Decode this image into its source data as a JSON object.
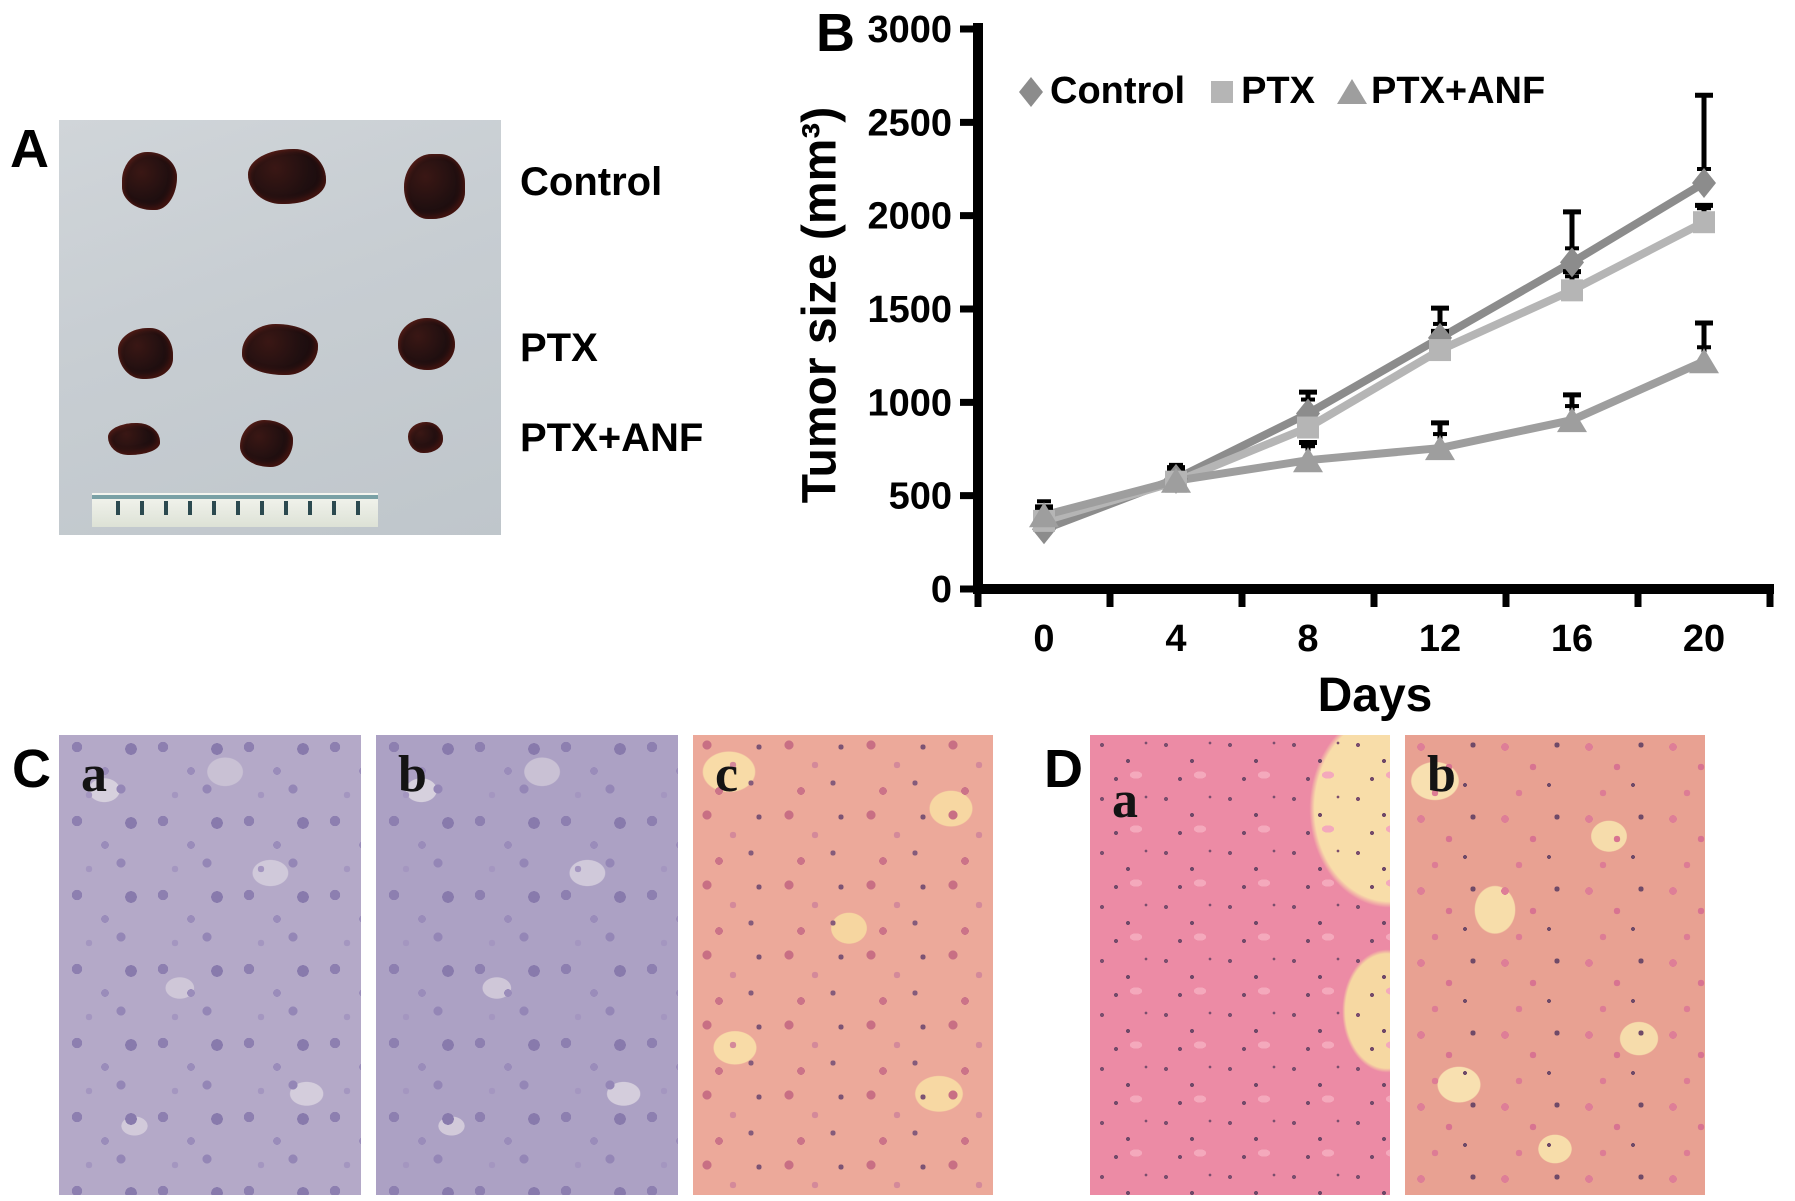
{
  "panelA": {
    "label": "A",
    "row_labels": [
      "Control",
      "PTX",
      "PTX+ANF"
    ]
  },
  "panelB": {
    "label": "B"
  },
  "panelC": {
    "label": "C",
    "sub_labels": [
      "a",
      "b",
      "c"
    ]
  },
  "panelD": {
    "label": "D",
    "sub_labels": [
      "a",
      "b"
    ]
  },
  "chart_data": {
    "type": "line",
    "x": [
      0,
      4,
      8,
      12,
      16,
      20
    ],
    "xlabel": "Days",
    "ylabel": "Tumor size (mm³)",
    "ylim": [
      0,
      3000
    ],
    "ytick_step": 500,
    "grid": false,
    "legend_position": "top",
    "error_bar_color": "#000000",
    "axis_color": "#000000",
    "series": [
      {
        "name": "Control",
        "marker": "diamond",
        "color": "#8c8c8c",
        "values": [
          320,
          590,
          940,
          1345,
          1750,
          2175
        ],
        "errors_up": [
          105,
          60,
          115,
          160,
          270,
          470
        ]
      },
      {
        "name": "PTX",
        "marker": "square",
        "color": "#b5b5b5",
        "values": [
          365,
          575,
          865,
          1280,
          1600,
          1965
        ],
        "errors_up": [
          70,
          50,
          80,
          100,
          100,
          90
        ]
      },
      {
        "name": "PTX+ANF",
        "marker": "triangle",
        "color": "#9e9e9e",
        "values": [
          395,
          580,
          690,
          755,
          905,
          1220
        ],
        "errors_up": [
          45,
          45,
          95,
          135,
          135,
          205
        ]
      }
    ]
  }
}
